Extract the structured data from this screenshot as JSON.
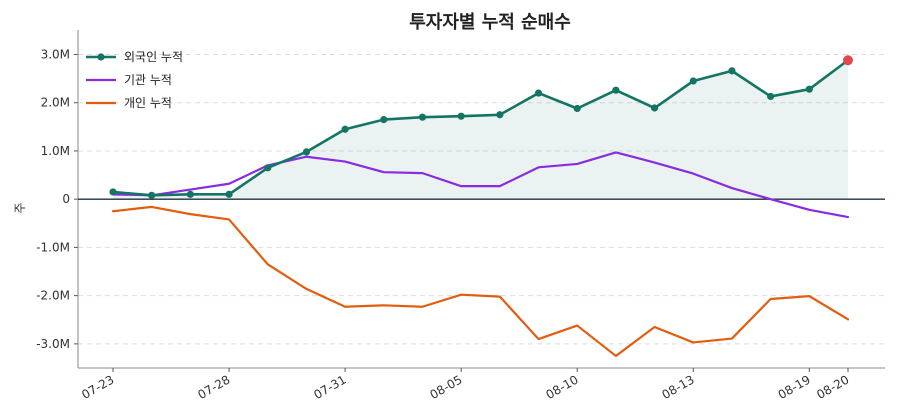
{
  "chart_data": {
    "type": "line",
    "title": "투자자별 누적 순매수",
    "xlabel": "",
    "ylabel": "주",
    "ylim": [
      -3500000,
      3300000
    ],
    "y_ticks": [
      3000000,
      2000000,
      1000000,
      0,
      -1000000,
      -2000000,
      -3000000
    ],
    "y_tick_labels": [
      "3.0M",
      "2.0M",
      "1.0M",
      "0",
      "-1.0M",
      "-2.0M",
      "-3.0M"
    ],
    "x_tick_labels": [
      "07-23",
      "07-28",
      "07-31",
      "08-05",
      "08-10",
      "08-13",
      "08-19",
      "08-20"
    ],
    "x_tick_index": [
      0,
      3,
      6,
      9,
      12,
      15,
      18,
      19
    ],
    "legend_position": "top-left",
    "grid": "horizontal dashed",
    "zero_line": true,
    "series": [
      {
        "name": "외국인 누적",
        "color": "#147565",
        "marker": "circle",
        "fill_area": true,
        "highlight_last": "#e04a4a",
        "values": [
          150000,
          80000,
          100000,
          100000,
          650000,
          980000,
          1450000,
          1650000,
          1700000,
          1720000,
          1750000,
          2200000,
          1880000,
          2260000,
          1890000,
          2450000,
          2660000,
          2130000,
          2280000,
          2880000
        ]
      },
      {
        "name": "기관 누적",
        "color": "#8a2be2",
        "marker": "none",
        "values": [
          100000,
          80000,
          200000,
          320000,
          700000,
          880000,
          780000,
          560000,
          540000,
          270000,
          270000,
          660000,
          730000,
          970000,
          760000,
          530000,
          230000,
          0,
          -220000,
          -370000
        ]
      },
      {
        "name": "개인 누적",
        "color": "#e25d10",
        "marker": "none",
        "values": [
          -250000,
          -160000,
          -310000,
          -420000,
          -1350000,
          -1860000,
          -2230000,
          -2200000,
          -2230000,
          -1980000,
          -2020000,
          -2900000,
          -2620000,
          -3250000,
          -2650000,
          -2970000,
          -2890000,
          -2070000,
          -2010000,
          -2490000
        ]
      }
    ]
  }
}
